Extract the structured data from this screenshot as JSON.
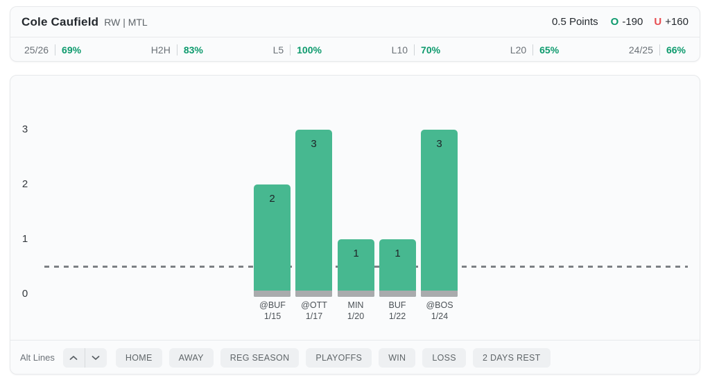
{
  "header": {
    "player_name": "Cole Caufield",
    "player_meta": "RW | MTL",
    "prop_line": "0.5 Points",
    "over_label": "O",
    "over_odds": "-190",
    "under_label": "U",
    "under_odds": "+160"
  },
  "stats": {
    "items": [
      {
        "label": "25/26",
        "value": "69%"
      },
      {
        "label": "H2H",
        "value": "83%"
      },
      {
        "label": "L5",
        "value": "100%"
      },
      {
        "label": "L10",
        "value": "70%"
      },
      {
        "label": "L20",
        "value": "65%"
      },
      {
        "label": "24/25",
        "value": "66%"
      }
    ]
  },
  "chart_data": {
    "type": "bar",
    "title": "",
    "xlabel": "",
    "ylabel": "",
    "categories": [
      "@BUF 1/15",
      "@OTT 1/17",
      "MIN 1/20",
      "BUF 1/22",
      "@BOS 1/24"
    ],
    "games": [
      {
        "opponent": "@BUF",
        "date": "1/15"
      },
      {
        "opponent": "@OTT",
        "date": "1/17"
      },
      {
        "opponent": "MIN",
        "date": "1/20"
      },
      {
        "opponent": "BUF",
        "date": "1/22"
      },
      {
        "opponent": "@BOS",
        "date": "1/24"
      }
    ],
    "values": [
      2,
      3,
      1,
      1,
      3
    ],
    "yticks": [
      0,
      1,
      2,
      3
    ],
    "ylim": [
      0,
      3.4
    ],
    "threshold_line": 0.5,
    "legend": "none",
    "grid": false,
    "bar_color": "#47b890",
    "bar_base_color": "#a9abad",
    "threshold_color": "#7c8084"
  },
  "filters": {
    "alt_lines_label": "Alt Lines",
    "buttons": [
      "HOME",
      "AWAY",
      "REG SEASON",
      "PLAYOFFS",
      "WIN",
      "LOSS",
      "2 DAYS REST"
    ]
  },
  "colors": {
    "accent_green": "#0d9a6d",
    "accent_red": "#e74c50",
    "bar_green": "#47b890",
    "bar_base_gray": "#a9abad"
  }
}
